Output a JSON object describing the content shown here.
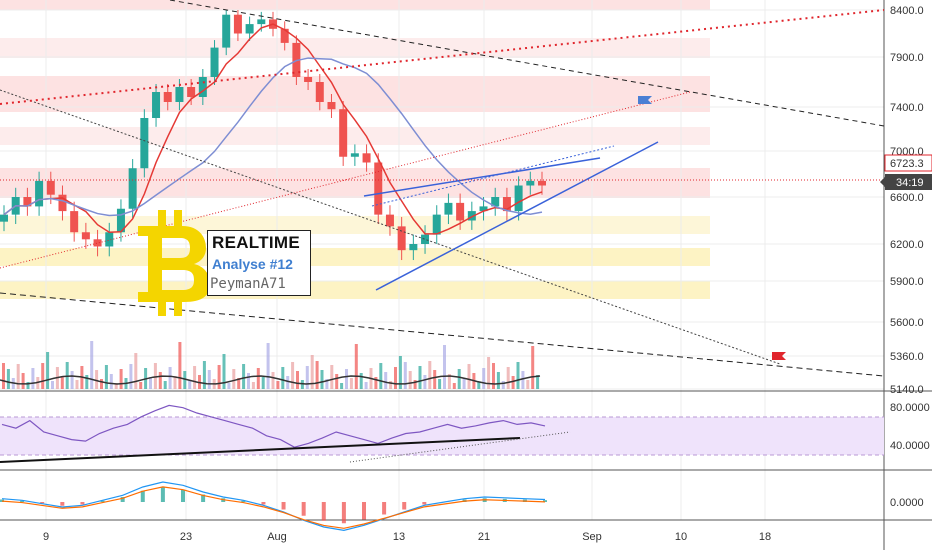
{
  "chart_data": [
    {
      "type": "candlestick",
      "price_axis": {
        "ticks": [
          "8400.0",
          "7900.0",
          "7400.0",
          "7000.0",
          "6600.0",
          "6200.0",
          "5900.0",
          "5600.0",
          "5360.0",
          "5140.0"
        ],
        "range": [
          5140,
          8400
        ]
      },
      "current_price": "6723.3",
      "countdown": "34:19",
      "dates": [
        "9",
        "23",
        "Aug",
        "13",
        "21",
        "Sep",
        "10",
        "18"
      ],
      "overlay": {
        "title": "REALTIME",
        "subtitle": "Analyse  #12",
        "author": "PeymanA71"
      },
      "candles_close": [
        6450,
        6600,
        6520,
        6740,
        6620,
        6480,
        6300,
        6240,
        6180,
        6300,
        6500,
        6850,
        7300,
        7550,
        7450,
        7600,
        7500,
        7700,
        8000,
        8350,
        8150,
        8250,
        8300,
        8200,
        8050,
        7700,
        7650,
        7450,
        7380,
        6950,
        6980,
        6900,
        6450,
        6350,
        6150,
        6200,
        6280,
        6450,
        6550,
        6400,
        6480,
        6520,
        6600,
        6480,
        6700,
        6740,
        6700
      ],
      "moving_averages": [
        "MA (red)",
        "MA (blue)"
      ],
      "trendlines": [
        "descending resistance",
        "ascending support",
        "rising wedge"
      ]
    },
    {
      "type": "rsi",
      "axis": [
        "80.0000",
        "40.0000"
      ],
      "range": [
        0,
        100
      ],
      "values": [
        60,
        55,
        65,
        50,
        45,
        40,
        38,
        48,
        55,
        60,
        70,
        78,
        85,
        82,
        75,
        70,
        65,
        60,
        55,
        45,
        40,
        30,
        35,
        42,
        50,
        45,
        40,
        35,
        42,
        48,
        50,
        55,
        60,
        55,
        58,
        62,
        65,
        60,
        62,
        58
      ]
    },
    {
      "type": "macd",
      "axis": [
        "0.0000"
      ],
      "values": [
        20,
        10,
        -10,
        -30,
        -20,
        10,
        40,
        90,
        120,
        100,
        60,
        30,
        10,
        -20,
        -60,
        -110,
        -150,
        -170,
        -140,
        -100,
        -60,
        -20,
        0,
        20,
        30,
        25,
        20,
        15
      ]
    }
  ],
  "colors": {
    "candle_up": "#26a69a",
    "candle_down": "#ef5350",
    "ma_fast": "#e53935",
    "ma_slow": "#7e8ed3",
    "rsi_line": "#7e57c2",
    "rsi_band": "#efe3fb",
    "wedge": "#3a62d9",
    "grid": "#ececec",
    "resistance_dotted": "#e0252c",
    "bitcoin_yellow": "#f4d500"
  }
}
